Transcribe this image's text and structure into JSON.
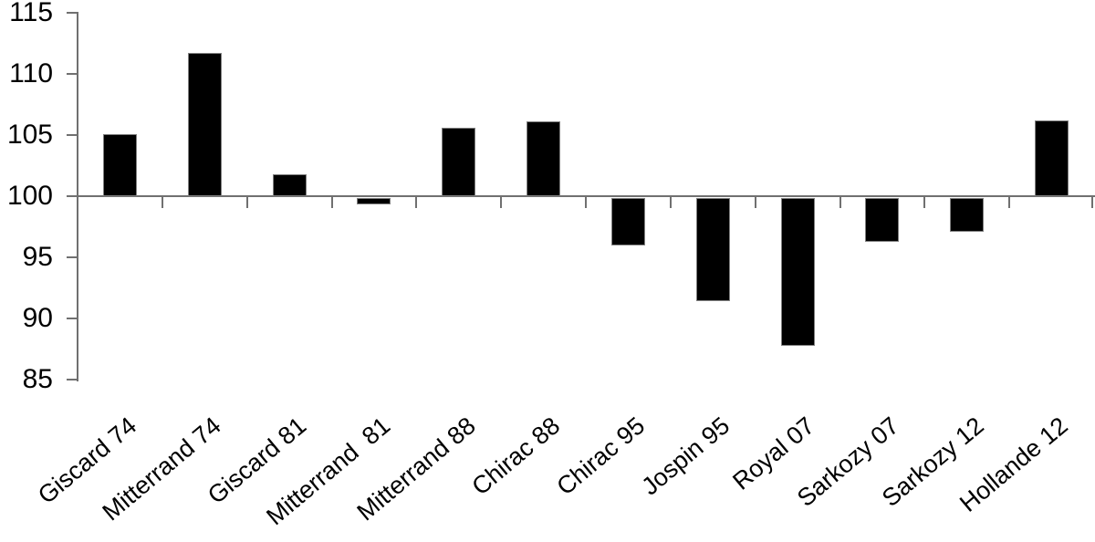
{
  "chart_data": {
    "type": "bar",
    "title": "",
    "xlabel": "",
    "ylabel": "",
    "categories": [
      "Giscard 74",
      "Mitterrand 74",
      "Giscard 81",
      "Mitterrand  81",
      "Mitterrand 88",
      "Chirac 88",
      "Chirac 95",
      "Jospin 95",
      "Royal 07",
      "Sarkozy 07",
      "Sarkozy 12",
      "Hollande 12"
    ],
    "values": [
      105.1,
      111.7,
      101.8,
      99.3,
      105.6,
      106.1,
      96.0,
      91.4,
      87.8,
      96.3,
      97.1,
      106.2
    ],
    "baseline": 100,
    "ylim": [
      85,
      115
    ],
    "yticks": [
      85,
      90,
      95,
      100,
      105,
      110,
      115
    ],
    "grid": false,
    "legend_position": "none",
    "bar_color": "#000000",
    "bar_border_color": "#808080",
    "axis_color": "#707070",
    "text_color": "#000000",
    "x_label_rotation_deg": -40
  }
}
